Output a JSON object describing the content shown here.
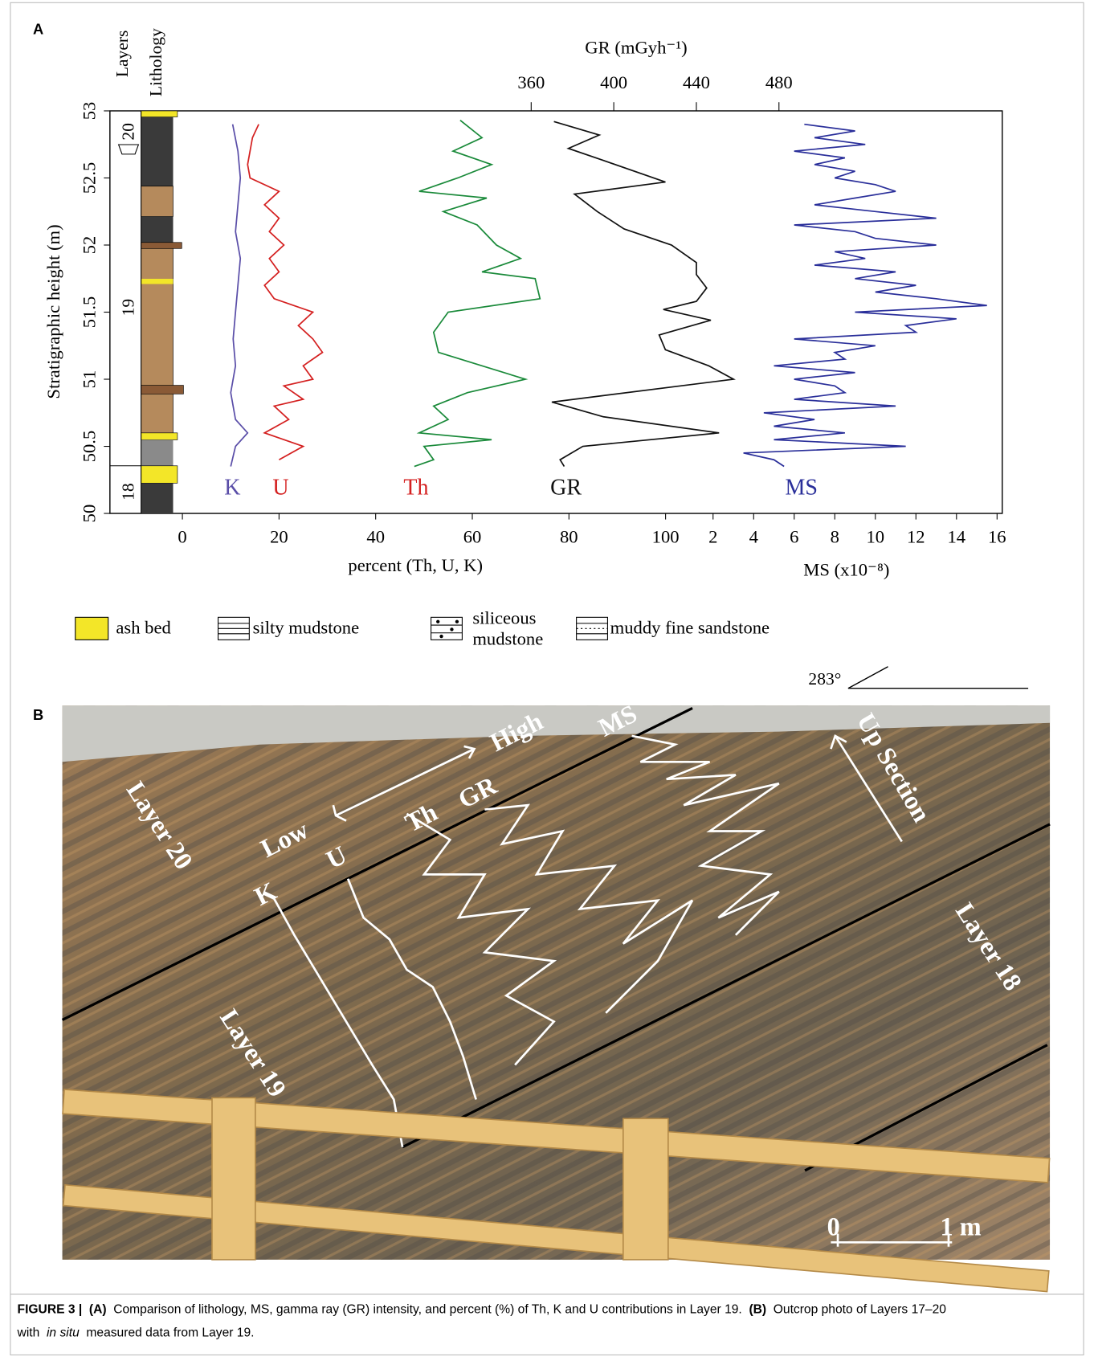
{
  "chart_data": {
    "type": "line",
    "panel_label": "A",
    "ylabel": "Stratigraphic height (m)",
    "ylim": [
      50,
      53
    ],
    "yticks": [
      50,
      50.5,
      51,
      51.5,
      52,
      52.5,
      53
    ],
    "xlabel": "percent (Th, U, K)",
    "xlim": [
      -15,
      100
    ],
    "xticks": [
      0,
      20,
      40,
      60,
      80,
      100
    ],
    "x2label": "GR (mGyh⁻¹)",
    "x2lim": [
      340,
      480
    ],
    "x2ticks": [
      360,
      400,
      440,
      480
    ],
    "x3label": "MS (x10⁻⁸)",
    "x3lim": [
      0,
      16
    ],
    "x3ticks": [
      2,
      4,
      6,
      8,
      10,
      12,
      14,
      16
    ],
    "column_headers": [
      "Layers",
      "Lithology"
    ],
    "layers": [
      "20",
      "19",
      "18"
    ],
    "series": [
      {
        "name": "K",
        "color": "#5a4ea8",
        "label_color": "#5a4ea8",
        "axis": "x",
        "heights": [
          52.9,
          52.7,
          52.5,
          52.3,
          52.1,
          51.9,
          51.7,
          51.5,
          51.3,
          51.1,
          50.9,
          50.7,
          50.6,
          50.5,
          50.35
        ],
        "values": [
          10.4,
          11.5,
          12,
          11.5,
          11,
          12,
          11.5,
          11,
          10.5,
          11,
          10,
          11,
          13.5,
          11,
          10
        ]
      },
      {
        "name": "U",
        "color": "#d42020",
        "label_color": "#d42020",
        "axis": "x",
        "heights": [
          52.9,
          52.8,
          52.6,
          52.5,
          52.4,
          52.3,
          52.2,
          52.1,
          52.0,
          51.9,
          51.8,
          51.7,
          51.6,
          51.5,
          51.4,
          51.3,
          51.2,
          51.1,
          51.0,
          50.95,
          50.85,
          50.8,
          50.7,
          50.6,
          50.5,
          50.4
        ],
        "values": [
          15.8,
          14.5,
          13.5,
          14,
          20,
          17,
          20,
          18,
          21,
          18,
          20,
          17,
          19,
          27,
          24,
          27,
          29,
          25,
          27,
          21,
          25,
          19,
          22,
          17,
          25,
          20
        ]
      },
      {
        "name": "Th",
        "color": "#1a8a3a",
        "label_color": "#d42020",
        "axis": "x",
        "heights": [
          52.93,
          52.8,
          52.7,
          52.6,
          52.5,
          52.4,
          52.35,
          52.25,
          52.15,
          52.0,
          51.9,
          51.8,
          51.75,
          51.6,
          51.5,
          51.35,
          51.2,
          51.1,
          51.0,
          50.9,
          50.8,
          50.7,
          50.6,
          50.55,
          50.5,
          50.4,
          50.35
        ],
        "values": [
          57.5,
          62,
          56,
          64,
          57,
          49,
          63,
          54,
          61,
          65,
          70,
          62,
          73,
          74,
          55,
          52,
          53,
          62,
          71,
          59,
          52,
          55,
          49,
          64,
          50,
          52,
          48
        ]
      },
      {
        "name": "GR",
        "color": "#111111",
        "label_color": "#111111",
        "axis": "x2",
        "heights": [
          52.92,
          52.82,
          52.72,
          52.63,
          52.47,
          52.38,
          52.25,
          52.12,
          52.0,
          51.87,
          51.78,
          51.68,
          51.58,
          51.52,
          51.44,
          51.33,
          51.22,
          51.1,
          51.0,
          50.83,
          50.72,
          50.6,
          50.5,
          50.4,
          50.35
        ],
        "values": [
          371,
          393,
          378,
          395,
          425,
          381,
          392,
          405,
          428,
          440,
          440,
          445,
          440,
          424,
          447,
          422,
          425,
          446,
          458,
          370,
          395,
          451,
          385,
          374,
          376
        ]
      },
      {
        "name": "MS",
        "color": "#2a2f9a",
        "label_color": "#2a2f9a",
        "axis": "x3",
        "heights": [
          52.9,
          52.85,
          52.8,
          52.75,
          52.7,
          52.65,
          52.6,
          52.55,
          52.5,
          52.45,
          52.4,
          52.35,
          52.3,
          52.25,
          52.2,
          52.15,
          52.1,
          52.05,
          52,
          51.95,
          51.9,
          51.85,
          51.8,
          51.75,
          51.7,
          51.65,
          51.6,
          51.55,
          51.5,
          51.45,
          51.4,
          51.35,
          51.3,
          51.25,
          51.2,
          51.15,
          51.1,
          51.05,
          51,
          50.95,
          50.9,
          50.85,
          50.8,
          50.75,
          50.7,
          50.65,
          50.6,
          50.55,
          50.5,
          50.45,
          50.4,
          50.35
        ],
        "values": [
          6.5,
          9,
          7,
          9.5,
          6,
          8.5,
          7,
          9,
          8,
          10,
          11,
          9,
          7,
          10,
          13,
          6,
          9,
          10,
          13,
          8,
          9.5,
          7,
          11,
          9,
          12,
          10,
          13,
          15.5,
          9,
          14,
          11.5,
          12,
          6,
          10,
          8,
          8.5,
          5,
          9,
          6,
          8,
          8.5,
          6,
          11,
          4.5,
          7,
          5,
          8.5,
          5,
          11.5,
          3.5,
          5,
          5.5
        ]
      }
    ],
    "legend": [
      "ash bed",
      "silty mudstone",
      "siliceous",
      "mudstone",
      "muddy fine sandstone"
    ],
    "orientation": "283°"
  },
  "photo": {
    "panel_label": "B",
    "labels": [
      "High",
      "Low",
      "MS",
      "GR",
      "Th",
      "U",
      "K",
      "Layer 20",
      "Layer 19",
      "Layer 18",
      "Up Section",
      "0",
      "1 m"
    ]
  },
  "caption": {
    "figure": "FIGURE 3 |",
    "part_a": "(A)",
    "text_a": "Comparison of lithology, MS, gamma ray (GR) intensity, and percent (%) of Th, K and U contributions in Layer 19.",
    "part_b": "(B)",
    "text_b": "Outcrop photo of Layers 17–20",
    "text_c": "with",
    "italic": "in situ",
    "text_d": "measured data from Layer 19."
  }
}
